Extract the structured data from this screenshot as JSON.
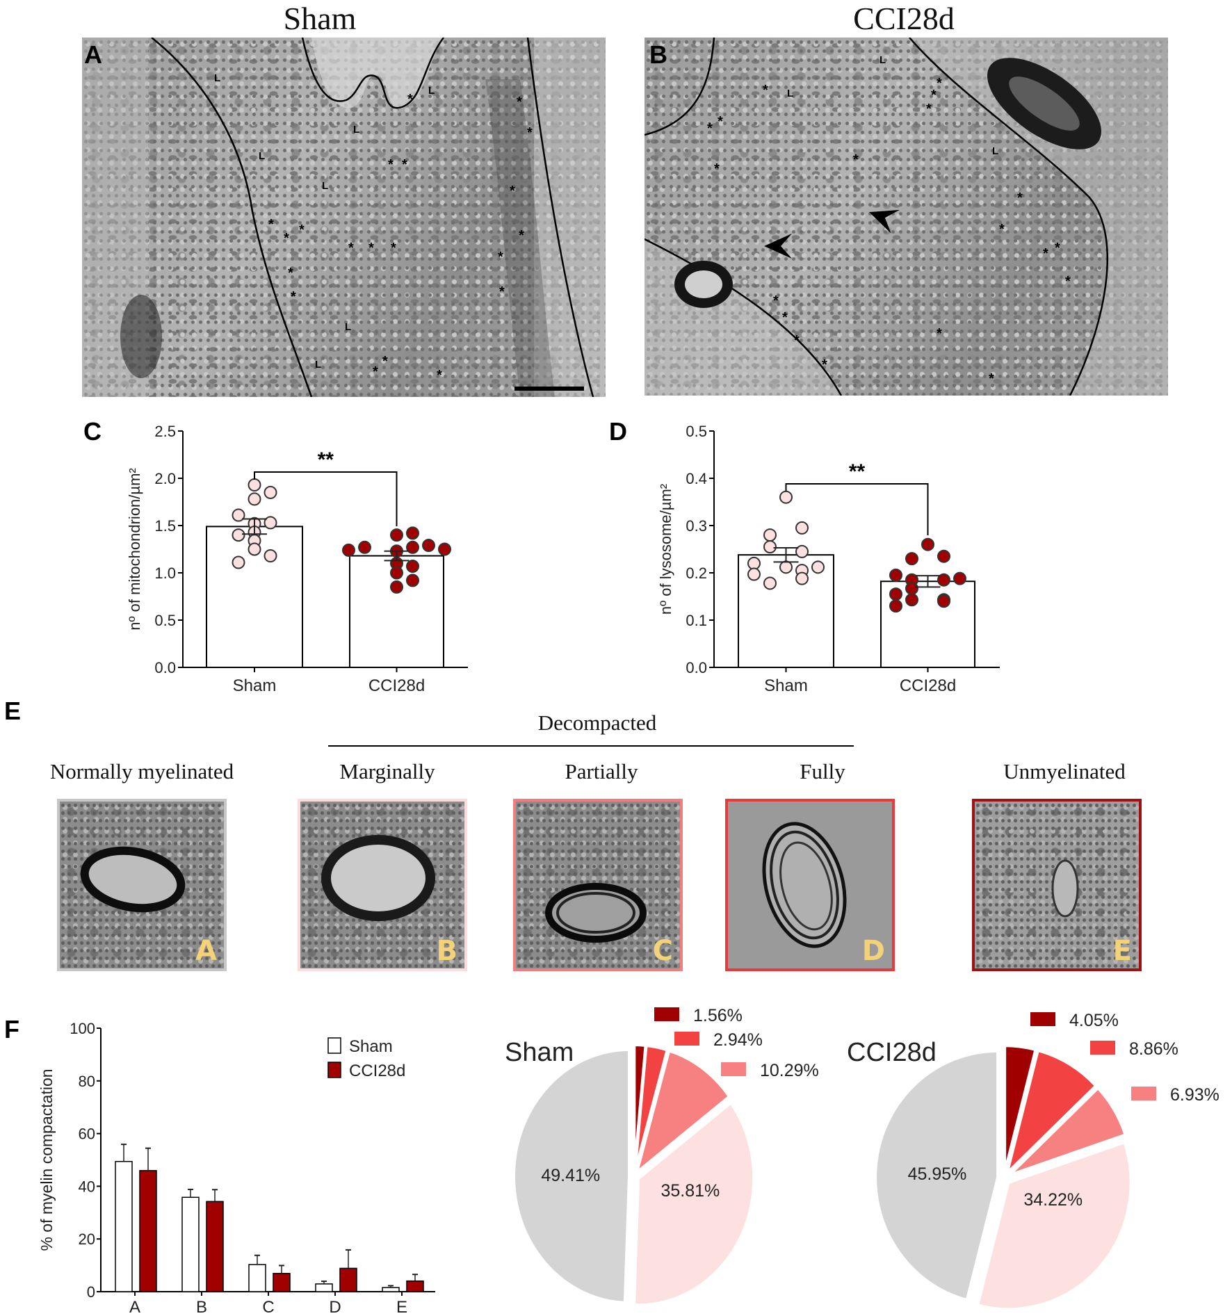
{
  "panel_labels": {
    "A": "A",
    "B": "B",
    "C": "C",
    "D": "D",
    "E": "E",
    "F": "F"
  },
  "top": {
    "sham_title": "Sham",
    "cci_title": "CCI28d",
    "marker_asterisk": "*",
    "marker_lysosome": "L"
  },
  "section_e": {
    "group_label": "Decompacted",
    "categories": [
      {
        "title": "Normally myelinated",
        "letter": "A",
        "border": "#c6c6c6"
      },
      {
        "title": "Marginally",
        "letter": "B",
        "border": "#fadcdc"
      },
      {
        "title": "Partially",
        "letter": "C",
        "border": "#f07e7e"
      },
      {
        "title": "Fully",
        "letter": "D",
        "border": "#e83a3a"
      },
      {
        "title": "Unmyelinated",
        "letter": "E",
        "border": "#a01212"
      }
    ]
  },
  "colors": {
    "sham_dot": "#fde0e0",
    "cci_dot": "#a00000",
    "pie_A": "#d4d4d4",
    "pie_B": "#fde0e0",
    "pie_C": "#f78080",
    "pie_D": "#f24242",
    "pie_E": "#a00000"
  },
  "chart_data": [
    {
      "id": "C",
      "type": "bar",
      "ylabel": "nº of mitochondrion/µm²",
      "ylim": [
        0,
        2.5
      ],
      "yticks": [
        "0.0",
        "0.5",
        "1.0",
        "1.5",
        "2.0",
        "2.5"
      ],
      "categories": [
        "Sham",
        "CCI28d"
      ],
      "means": [
        1.49,
        1.18
      ],
      "sem": [
        0.08,
        0.05
      ],
      "points": [
        [
          1.93,
          1.85,
          1.78,
          1.61,
          1.53,
          1.52,
          1.43,
          1.4,
          1.34,
          1.25,
          1.18,
          1.11
        ],
        [
          1.42,
          1.4,
          1.29,
          1.27,
          1.27,
          1.25,
          1.24,
          1.23,
          1.1,
          1.07,
          1.0,
          0.92,
          0.85
        ]
      ],
      "significance": "**"
    },
    {
      "id": "D",
      "type": "bar",
      "ylabel": "nº of lysosome/µm²",
      "ylim": [
        0,
        0.5
      ],
      "yticks": [
        "0.0",
        "0.1",
        "0.2",
        "0.3",
        "0.4",
        "0.5"
      ],
      "categories": [
        "Sham",
        "CCI28d"
      ],
      "means": [
        0.238,
        0.182
      ],
      "sem": [
        0.015,
        0.012
      ],
      "points": [
        [
          0.36,
          0.295,
          0.28,
          0.255,
          0.245,
          0.22,
          0.212,
          0.212,
          0.205,
          0.197,
          0.188,
          0.178
        ],
        [
          0.26,
          0.235,
          0.23,
          0.195,
          0.188,
          0.185,
          0.185,
          0.167,
          0.155,
          0.143,
          0.143,
          0.14,
          0.13
        ]
      ],
      "significance": "**"
    },
    {
      "id": "F",
      "type": "bar",
      "ylabel": "% of myelin compactation",
      "ylim": [
        0,
        100
      ],
      "yticks": [
        "0",
        "20",
        "40",
        "60",
        "80",
        "100"
      ],
      "categories": [
        "A",
        "B",
        "C",
        "D",
        "E"
      ],
      "legend_position": "top-right",
      "series": [
        {
          "name": "Sham",
          "values": [
            49.41,
            35.81,
            10.29,
            2.94,
            1.56
          ],
          "errors": [
            6.5,
            3.0,
            3.5,
            1.0,
            0.7
          ]
        },
        {
          "name": "CCI28d",
          "values": [
            45.95,
            34.22,
            6.93,
            8.86,
            4.05
          ],
          "errors": [
            8.5,
            4.5,
            3.0,
            7.0,
            2.5
          ]
        }
      ]
    },
    {
      "id": "F-pie-sham",
      "type": "pie",
      "title": "Sham",
      "slices": [
        {
          "category": "E",
          "value": 1.56,
          "label": "1.56%",
          "label_placement": "outside"
        },
        {
          "category": "D",
          "value": 2.94,
          "label": "2.94%",
          "label_placement": "outside"
        },
        {
          "category": "C",
          "value": 10.29,
          "label": "10.29%",
          "label_placement": "outside"
        },
        {
          "category": "B",
          "value": 35.81,
          "label": "35.81%",
          "label_placement": "inside"
        },
        {
          "category": "A",
          "value": 49.41,
          "label": "49.41%",
          "label_placement": "inside"
        }
      ]
    },
    {
      "id": "F-pie-cci",
      "type": "pie",
      "title": "CCI28d",
      "slices": [
        {
          "category": "E",
          "value": 4.05,
          "label": "4.05%",
          "label_placement": "outside"
        },
        {
          "category": "D",
          "value": 8.86,
          "label": "8.86%",
          "label_placement": "outside"
        },
        {
          "category": "C",
          "value": 6.93,
          "label": "6.93%",
          "label_placement": "outside"
        },
        {
          "category": "B",
          "value": 34.22,
          "label": "34.22%",
          "label_placement": "inside"
        },
        {
          "category": "A",
          "value": 45.95,
          "label": "45.95%",
          "label_placement": "inside"
        }
      ]
    }
  ]
}
